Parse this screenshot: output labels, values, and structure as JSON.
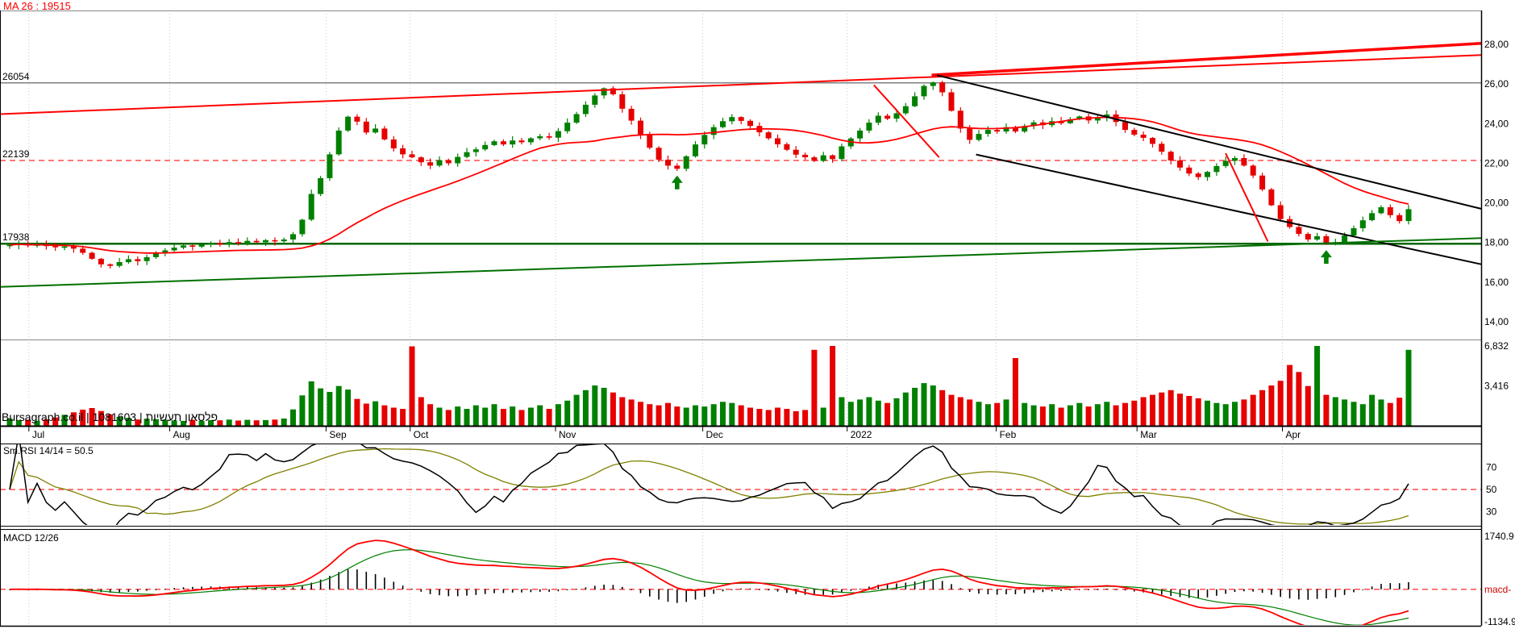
{
  "chart_data": {
    "type": "candlestick",
    "watermark": "Bursagraph.co.il | 1081603 | פלסאון תעשיות",
    "ma_label": "MA 26 : 19515",
    "open_first": 17850,
    "closes": [
      17880,
      17930,
      17850,
      17900,
      17820,
      17760,
      17800,
      17690,
      17480,
      17180,
      16900,
      16820,
      17010,
      17160,
      17060,
      17260,
      17450,
      17600,
      17740,
      17850,
      17790,
      17900,
      17980,
      17890,
      18020,
      17950,
      18080,
      18010,
      18120,
      18060,
      18150,
      18420,
      19150,
      20450,
      21250,
      22450,
      23650,
      24350,
      24100,
      23550,
      23750,
      23200,
      22750,
      22450,
      22300,
      22050,
      21880,
      22150,
      22000,
      22320,
      22560,
      22700,
      22920,
      23110,
      22950,
      23150,
      23060,
      23260,
      23360,
      23290,
      23620,
      24050,
      24480,
      24950,
      25420,
      25780,
      25480,
      24750,
      24150,
      23420,
      22780,
      22180,
      21880,
      21720,
      22350,
      22950,
      23430,
      23820,
      24120,
      24330,
      24140,
      23880,
      23560,
      23260,
      22960,
      22680,
      22430,
      22300,
      22120,
      22400,
      22210,
      22850,
      23250,
      23650,
      24050,
      24400,
      24250,
      24520,
      24880,
      25380,
      25900,
      26080,
      25580,
      24650,
      23750,
      23180,
      23480,
      23680,
      23600,
      23820,
      23600,
      23880,
      24060,
      23920,
      24120,
      24020,
      24220,
      24360,
      24160,
      24310,
      24460,
      24080,
      23680,
      23440,
      23280,
      22980,
      22580,
      22140,
      21780,
      21480,
      21300,
      21560,
      21860,
      22120,
      22260,
      21880,
      21380,
      20680,
      19880,
      19180,
      18780,
      18430,
      18150,
      18320,
      17920,
      17980,
      18350,
      18720,
      19120,
      19480,
      19780,
      19380,
      19080,
      19680
    ],
    "volumes": [
      620,
      480,
      520,
      430,
      560,
      720,
      940,
      1150,
      1380,
      1520,
      1260,
      980,
      760,
      680,
      540,
      610,
      570,
      520,
      460,
      420,
      510,
      430,
      490,
      470,
      530,
      450,
      510,
      470,
      490,
      530,
      620,
      1400,
      2600,
      3800,
      3200,
      2900,
      3400,
      3100,
      2300,
      1900,
      2100,
      1750,
      1550,
      1450,
      6800,
      2450,
      1850,
      1550,
      1350,
      1650,
      1450,
      1750,
      1550,
      1850,
      1450,
      1650,
      1350,
      1550,
      1750,
      1450,
      1850,
      2150,
      2650,
      3050,
      3450,
      3250,
      2850,
      2450,
      2250,
      2050,
      1850,
      1750,
      1950,
      1650,
      1550,
      1750,
      1650,
      1850,
      2050,
      1950,
      1750,
      1550,
      1450,
      1350,
      1550,
      1450,
      1250,
      1350,
      6500,
      1550,
      6832,
      2450,
      2050,
      2250,
      2450,
      2150,
      1950,
      2350,
      2850,
      3250,
      3650,
      3450,
      3050,
      2650,
      2450,
      2250,
      2050,
      1850,
      1950,
      2250,
      5800,
      1950,
      1750,
      1650,
      1850,
      1550,
      1750,
      1950,
      1650,
      1850,
      2050,
      1750,
      1950,
      2150,
      2450,
      2650,
      2850,
      3050,
      2750,
      2550,
      2350,
      2150,
      1950,
      1850,
      2050,
      2250,
      2650,
      3050,
      3450,
      3850,
      5200,
      4600,
      3400,
      6832,
      2650,
      2450,
      2250,
      2050,
      1850,
      2650,
      2250,
      1950,
      2400,
      6500
    ],
    "months": [
      {
        "label": "Jul",
        "i": 2.1
      },
      {
        "label": "Aug",
        "i": 17.5
      },
      {
        "label": "Sep",
        "i": 34.6
      },
      {
        "label": "Oct",
        "i": 43.8
      },
      {
        "label": "Nov",
        "i": 59.7
      },
      {
        "label": "Dec",
        "i": 75.8
      },
      {
        "label": "2022",
        "i": 91.6
      },
      {
        "label": "Feb",
        "i": 107.9
      },
      {
        "label": "Mar",
        "i": 123.3
      },
      {
        "label": "Apr",
        "i": 139.2
      }
    ],
    "price_axis": {
      "min": 14000,
      "max": 28000,
      "ticks": [
        {
          "v": 28000,
          "label": "28,00"
        },
        {
          "v": 26000,
          "label": "26,00"
        },
        {
          "v": 24000,
          "label": "24,00"
        },
        {
          "v": 22000,
          "label": "22,00"
        },
        {
          "v": 20000,
          "label": "20,00"
        },
        {
          "v": 18000,
          "label": "18,00"
        },
        {
          "v": 16000,
          "label": "16,00"
        },
        {
          "v": 14000,
          "label": "14,00"
        }
      ]
    },
    "volume_axis": {
      "max": 6832,
      "ticks": [
        {
          "v": 6832,
          "label": "6,832"
        },
        {
          "v": 3416,
          "label": "3,416"
        }
      ]
    },
    "hlines": [
      {
        "p": 26054,
        "color": "#808080",
        "w": 1.5,
        "dash": "",
        "label": "26054"
      },
      {
        "p": 22139,
        "color": "#ff4d4d",
        "w": 1.5,
        "dash": "7,5",
        "label": "22139"
      },
      {
        "p": 17938,
        "color": "#006600",
        "w": 2.5,
        "dash": "",
        "label": "17938"
      }
    ],
    "trendlines": [
      {
        "x1": 0.0,
        "p1": 24480,
        "x2": 1.0,
        "p2": 27460,
        "color": "#ff0000",
        "w": 2
      },
      {
        "x1": 0.629,
        "p1": 26450,
        "x2": 1.0,
        "p2": 28050,
        "color": "#ff0000",
        "w": 3.5
      },
      {
        "x1": 0.6326,
        "p1": 26440,
        "x2": 1.0,
        "p2": 19700,
        "color": "#000000",
        "w": 2
      },
      {
        "x1": 0.659,
        "p1": 22440,
        "x2": 1.0,
        "p2": 16900,
        "color": "#000000",
        "w": 2
      },
      {
        "x1": 0.0,
        "p1": 15760,
        "x2": 1.0,
        "p2": 18220,
        "color": "#007000",
        "w": 2
      },
      {
        "x1": 0.59,
        "p1": 25950,
        "x2": 0.634,
        "p2": 22300,
        "color": "#ff0000",
        "w": 2
      },
      {
        "x1": 0.8275,
        "p1": 22500,
        "x2": 0.856,
        "p2": 18050,
        "color": "#ff0000",
        "w": 2
      }
    ],
    "arrows": [
      {
        "i": 73,
        "p": 21380
      },
      {
        "i": 144,
        "p": 17620
      }
    ],
    "rsi": {
      "label": "Sm.RSI 14/14 = 50.5",
      "period": 14,
      "smooth": 14,
      "mid": 50,
      "ticks": [
        {
          "v": 70,
          "label": "70"
        },
        {
          "v": 50,
          "label": "50"
        },
        {
          "v": 30,
          "label": "30"
        }
      ]
    },
    "macd": {
      "label": "MACD 12/26",
      "fast": 12,
      "slow": 26,
      "signal": 9,
      "range": {
        "max": 1740.9,
        "min": -1134.9
      },
      "labels": {
        "top": "1740.9",
        "mid": "macd-",
        "bottom": "-1134.9"
      }
    },
    "colors": {
      "up": "#008000",
      "down": "#e60000",
      "ma": "#ff0000",
      "grid": "#c8c8c8",
      "dashed": "#ff4d4d",
      "rsi": "#000000",
      "rsi_smooth": "#808000",
      "macd": "#ff0000",
      "signal": "#008000",
      "hist": "#000000"
    }
  }
}
